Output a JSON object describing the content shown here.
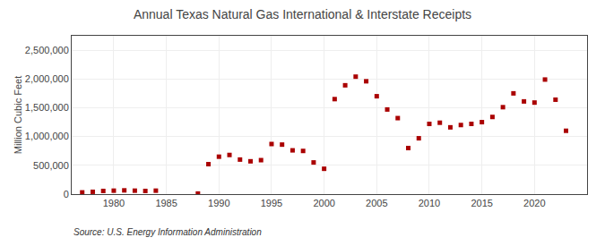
{
  "chart_data": {
    "type": "scatter",
    "title": "Annual Texas Natural Gas International & Interstate Receipts",
    "ylabel": "Million Cubic Feet",
    "annotations": [
      "Source: U.S. Energy Information Administration"
    ],
    "color": "#aa0000",
    "marker": "square",
    "grid": true,
    "xlim": [
      1976,
      2025
    ],
    "ylim": [
      0,
      2750000
    ],
    "xticks": [
      1980,
      1985,
      1990,
      1995,
      2000,
      2005,
      2010,
      2015,
      2020
    ],
    "yticks": [
      0,
      {
        "value": 500000,
        "label": "500,000"
      },
      {
        "value": 1000000,
        "label": "1,000,000"
      },
      {
        "value": 1500000,
        "label": "1,500,000"
      },
      {
        "value": 2000000,
        "label": "2,000,000"
      },
      {
        "value": 2500000,
        "label": "2,500,000"
      }
    ],
    "x": [
      1977,
      1978,
      1979,
      1980,
      1981,
      1982,
      1983,
      1984,
      1988,
      1989,
      1990,
      1991,
      1992,
      1993,
      1994,
      1995,
      1996,
      1997,
      1998,
      1999,
      2000,
      2001,
      2002,
      2003,
      2004,
      2005,
      2006,
      2007,
      2008,
      2009,
      2010,
      2011,
      2012,
      2013,
      2014,
      2015,
      2016,
      2017,
      2018,
      2019,
      2020,
      2021,
      2022,
      2023
    ],
    "values": [
      30000,
      40000,
      55000,
      60000,
      65000,
      60000,
      55000,
      60000,
      10000,
      520000,
      650000,
      680000,
      600000,
      570000,
      590000,
      870000,
      860000,
      760000,
      750000,
      550000,
      440000,
      1650000,
      1890000,
      2040000,
      1960000,
      1700000,
      1470000,
      1320000,
      800000,
      970000,
      1220000,
      1240000,
      1160000,
      1200000,
      1220000,
      1250000,
      1340000,
      1510000,
      1750000,
      1610000,
      1590000,
      1990000,
      1640000,
      1100000
    ]
  }
}
